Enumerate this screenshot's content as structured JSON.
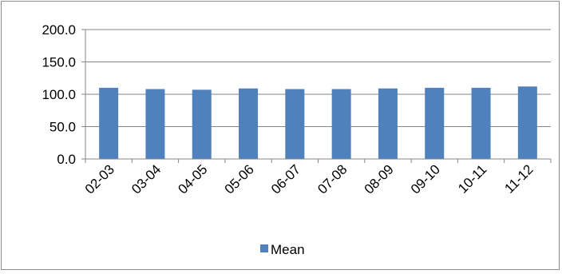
{
  "chart_data": {
    "type": "bar",
    "title": "",
    "xlabel": "",
    "ylabel": "",
    "categories": [
      "02-03",
      "03-04",
      "04-05",
      "05-06",
      "06-07",
      "07-08",
      "08-09",
      "09-10",
      "10-11",
      "11-12"
    ],
    "series": [
      {
        "name": "Mean",
        "values": [
          110,
          108,
          107,
          109,
          108,
          108,
          109,
          110,
          110,
          112
        ]
      }
    ],
    "ylim": [
      0,
      200
    ],
    "yticks": [
      "0.0",
      "50.0",
      "100.0",
      "150.0",
      "200.0"
    ],
    "grid": true,
    "legend_position": "bottom",
    "colors": {
      "bar": "#4f81bd",
      "grid": "#868686",
      "axis": "#868686"
    }
  }
}
